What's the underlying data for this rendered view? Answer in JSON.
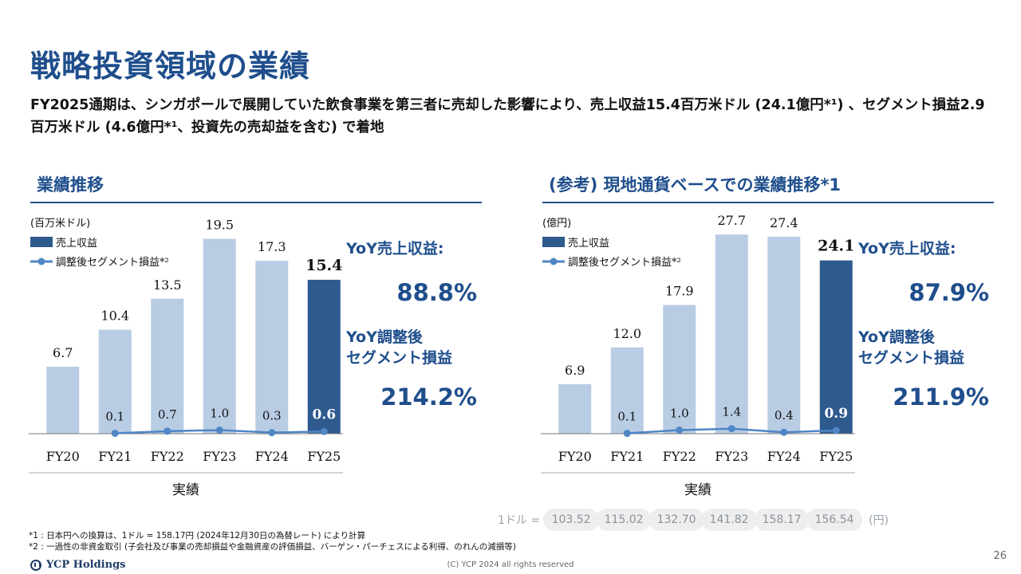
{
  "page": {
    "title": "戦略投資領域の業績",
    "summary": "FY2025通期は、シンガポールで展開していた飲食事業を第三者に売却した影響により、売上収益15.4百万米ドル (24.1億円*¹) 、セグメント損益2.9百万米ドル (4.6億円*¹、投資先の売却益を含む) で着地",
    "footnote1": "*1 : 日本円への換算は、1ドル = 158.17円 (2024年12月30日の為替レート) により計算",
    "footnote2": "*2 : 一過性の非資金取引 (子会社及び事業の売却損益や金融資産の評価損益、バーゲン・パーチェスによる利得、のれんの減損等)",
    "logo_text": "YCP Holdings",
    "copyright": "(C) YCP 2024 all rights reserved",
    "page_number": "26"
  },
  "sections": {
    "left_title": "業績推移",
    "right_title": "(参考) 現地通貨ベースでの業績推移*1"
  },
  "kpis": {
    "left": {
      "revenue_label": "YoY売上収益:",
      "revenue_value": "88.8%",
      "segment_label_1": "YoY調整後",
      "segment_label_2": "セグメント損益",
      "segment_value": "214.2%"
    },
    "right": {
      "revenue_label": "YoY売上収益:",
      "revenue_value": "87.9%",
      "segment_label_1": "YoY調整後",
      "segment_label_2": "セグメント損益",
      "segment_value": "211.9%"
    }
  },
  "fx": {
    "label": "1ドル =",
    "rates": [
      "103.52",
      "115.02",
      "132.70",
      "141.82",
      "158.17",
      "156.54"
    ],
    "unit": "(円)"
  },
  "colors": {
    "bar_light": "#b8cce4",
    "bar_highlight": "#2e5a8e",
    "line": "#4f86c6",
    "accent": "#1f4e8c"
  },
  "chart_data": [
    {
      "type": "bar",
      "unit_label": "(百万米ドル)",
      "xlabel": "実績",
      "categories": [
        "FY20",
        "FY21",
        "FY22",
        "FY23",
        "FY24",
        "FY25"
      ],
      "series": [
        {
          "name": "売上収益",
          "type": "bar",
          "values": [
            6.7,
            10.4,
            13.5,
            19.5,
            17.3,
            15.4
          ],
          "labels": [
            "6.7",
            "10.4",
            "13.5",
            "19.5",
            "17.3",
            "15.4"
          ]
        },
        {
          "name": "調整後セグメント損益*²",
          "type": "line",
          "values": [
            null,
            0.1,
            0.7,
            1.0,
            0.3,
            0.6
          ],
          "labels": [
            "",
            "0.1",
            "0.7",
            "1.0",
            "0.3",
            "0.6"
          ]
        }
      ],
      "ylim": [
        0,
        20.5
      ],
      "highlight_index": 5
    },
    {
      "type": "bar",
      "unit_label": "(億円)",
      "xlabel": "実績",
      "categories": [
        "FY20",
        "FY21",
        "FY22",
        "FY23",
        "FY24",
        "FY25"
      ],
      "series": [
        {
          "name": "売上収益",
          "type": "bar",
          "values": [
            6.9,
            12.0,
            17.9,
            27.7,
            27.4,
            24.1
          ],
          "labels": [
            "6.9",
            "12.0",
            "17.9",
            "27.7",
            "27.4",
            "24.1"
          ]
        },
        {
          "name": "調整後セグメント損益*²",
          "type": "line",
          "values": [
            null,
            0.1,
            1.0,
            1.4,
            0.4,
            0.9
          ],
          "labels": [
            "",
            "0.1",
            "1.0",
            "1.4",
            "0.4",
            "0.9"
          ]
        }
      ],
      "ylim": [
        0,
        28.5
      ],
      "highlight_index": 5
    }
  ]
}
